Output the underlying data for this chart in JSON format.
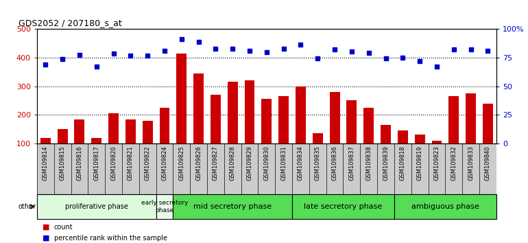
{
  "title": "GDS2052 / 207180_s_at",
  "categories": [
    "GSM109814",
    "GSM109815",
    "GSM109816",
    "GSM109817",
    "GSM109820",
    "GSM109821",
    "GSM109822",
    "GSM109824",
    "GSM109825",
    "GSM109826",
    "GSM109827",
    "GSM109828",
    "GSM109829",
    "GSM109830",
    "GSM109831",
    "GSM109834",
    "GSM109835",
    "GSM109836",
    "GSM109837",
    "GSM109838",
    "GSM109839",
    "GSM109818",
    "GSM109819",
    "GSM109823",
    "GSM109832",
    "GSM109833",
    "GSM109840"
  ],
  "bar_values": [
    120,
    150,
    185,
    120,
    205,
    185,
    180,
    225,
    415,
    345,
    270,
    315,
    320,
    255,
    265,
    300,
    135,
    280,
    250,
    225,
    165,
    145,
    130,
    110,
    265,
    275,
    240
  ],
  "dot_values": [
    375,
    395,
    410,
    370,
    415,
    408,
    408,
    425,
    465,
    455,
    432,
    432,
    425,
    420,
    432,
    445,
    398,
    428,
    422,
    418,
    398,
    400,
    388,
    370,
    428,
    430,
    425
  ],
  "phases": [
    {
      "label": "proliferative phase",
      "start": 0,
      "end": 7,
      "color": "#ddfadd"
    },
    {
      "label": "early secretory\nphase",
      "start": 7,
      "end": 8,
      "color": "#eafaea"
    },
    {
      "label": "mid secretory phase",
      "start": 8,
      "end": 15,
      "color": "#55dd55"
    },
    {
      "label": "late secretory phase",
      "start": 15,
      "end": 21,
      "color": "#55dd55"
    },
    {
      "label": "ambiguous phase",
      "start": 21,
      "end": 27,
      "color": "#55dd55"
    }
  ],
  "ylim_left": [
    100,
    500
  ],
  "ylim_right": [
    0,
    100
  ],
  "bar_color": "#cc0000",
  "dot_color": "#0000cc",
  "tick_bg_color": "#cccccc",
  "plot_bg_color": "#ffffff",
  "right_yticks": [
    0,
    25,
    50,
    75,
    100
  ],
  "right_yticklabels": [
    "0",
    "25",
    "50",
    "75",
    "100%"
  ],
  "left_yticks": [
    100,
    200,
    300,
    400,
    500
  ],
  "left_yticklabels": [
    "100",
    "200",
    "300",
    "400",
    "500"
  ]
}
